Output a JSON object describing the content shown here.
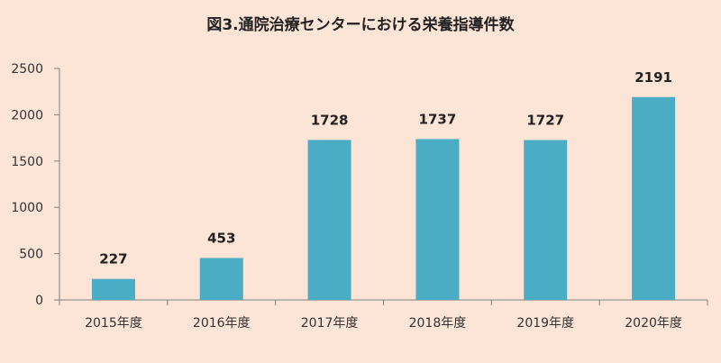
{
  "chart_data": {
    "type": "bar",
    "title": "図3.通院治療センターにおける栄養指導件数",
    "categories": [
      "2015年度",
      "2016年度",
      "2017年度",
      "2018年度",
      "2019年度",
      "2020年度"
    ],
    "values": [
      227,
      453,
      1728,
      1737,
      1727,
      2191
    ],
    "ylim": [
      0,
      2500
    ],
    "yticks": [
      0,
      500,
      1000,
      1500,
      2000,
      2500
    ],
    "xlabel": "",
    "ylabel": "",
    "grid": false,
    "legend": "none",
    "bar_color": "#4bacc6",
    "background_color": "#fce4d6",
    "axis_color": "#7f7f7f"
  }
}
